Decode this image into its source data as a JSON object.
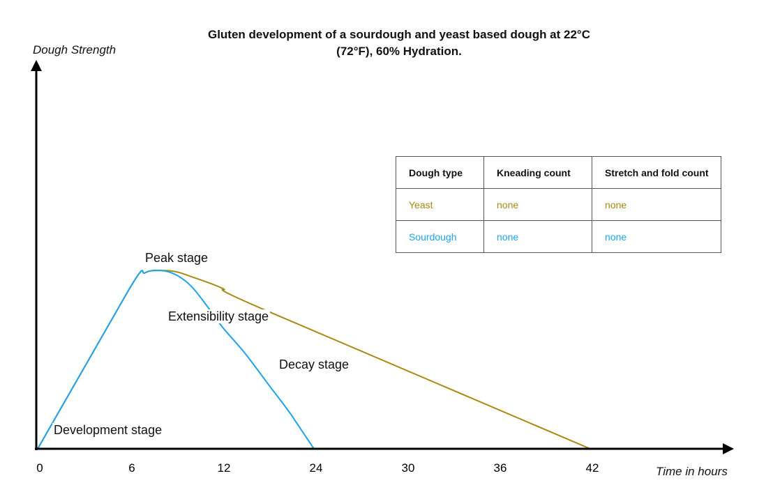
{
  "chart_data": {
    "type": "line",
    "title": "Gluten development of a sourdough and yeast based dough at 22°C (72°F), 60% Hydration.",
    "xlabel": "Time in hours",
    "ylabel": "Dough Strength",
    "x_tick_labels": [
      "0",
      "6",
      "12",
      "24",
      "30",
      "36",
      "42"
    ],
    "x_tick_values": [
      0,
      6,
      12,
      24,
      30,
      36,
      42
    ],
    "ylim": [
      0,
      100
    ],
    "grid": false,
    "series": [
      {
        "key": "yeast",
        "color": "#a88a12",
        "points": [
          [
            0,
            0
          ],
          [
            6,
            42
          ],
          [
            7,
            46
          ],
          [
            8,
            46.6
          ],
          [
            9,
            46.3
          ],
          [
            10,
            45
          ],
          [
            12,
            42
          ],
          [
            17,
            36.8
          ],
          [
            42,
            0
          ]
        ]
      },
      {
        "key": "sourdough",
        "color": "#1aa3ec",
        "points": [
          [
            0,
            0
          ],
          [
            6,
            42
          ],
          [
            7,
            46
          ],
          [
            8,
            46.6
          ],
          [
            9,
            45.5
          ],
          [
            10,
            42.5
          ],
          [
            11,
            37.5
          ],
          [
            12,
            32
          ],
          [
            15,
            25
          ],
          [
            18,
            17
          ],
          [
            21,
            9
          ],
          [
            24,
            0
          ]
        ]
      }
    ],
    "annotations": [
      "Peak stage",
      "Extensibility stage",
      "Decay stage",
      "Development stage"
    ]
  },
  "table": {
    "headers": [
      "Dough type",
      "Kneading count",
      "Stretch and fold count"
    ],
    "rows": [
      {
        "cells": [
          "Yeast",
          "none",
          "none"
        ],
        "color": "#a88a12"
      },
      {
        "cells": [
          "Sourdough",
          "none",
          "none"
        ],
        "color": "#1aa3ec"
      }
    ]
  }
}
